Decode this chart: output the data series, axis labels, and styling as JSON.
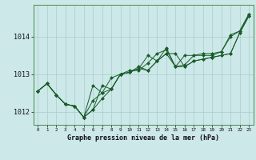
{
  "title": "Graphe pression niveau de la mer (hPa)",
  "bg_color": "#cce8e8",
  "grid_color": "#aacccc",
  "line_color": "#1a5c2a",
  "marker_color": "#1a5c2a",
  "xlim": [
    -0.5,
    23.5
  ],
  "ylim": [
    1011.65,
    1014.85
  ],
  "yticks": [
    1012,
    1013,
    1014
  ],
  "xticks": [
    0,
    1,
    2,
    3,
    4,
    5,
    6,
    7,
    8,
    9,
    10,
    11,
    12,
    13,
    14,
    15,
    16,
    17,
    18,
    19,
    20,
    21,
    22,
    23
  ],
  "series": [
    [
      1012.55,
      1012.75,
      1012.45,
      1012.2,
      1012.15,
      1011.85,
      1012.05,
      1012.35,
      1012.6,
      1013.0,
      1013.05,
      1013.15,
      1013.1,
      1013.35,
      1013.55,
      1013.2,
      1013.2,
      1013.35,
      1013.4,
      1013.45,
      1013.5,
      1013.55,
      1014.1,
      1014.55
    ],
    [
      1012.55,
      1012.75,
      1012.45,
      1012.2,
      1012.15,
      1011.85,
      1012.7,
      1012.5,
      1012.9,
      1013.0,
      1013.1,
      1013.1,
      1013.3,
      1013.55,
      1013.65,
      1013.2,
      1013.25,
      1013.5,
      1013.5,
      1013.5,
      1013.6,
      1014.0,
      1014.15,
      1014.6
    ],
    [
      1012.55,
      1012.75,
      1012.45,
      1012.2,
      1012.15,
      1011.85,
      1012.3,
      1012.5,
      1012.6,
      1013.0,
      1013.05,
      1013.15,
      1013.5,
      1013.35,
      1013.7,
      1013.2,
      1013.5,
      1013.5,
      1013.55,
      1013.55,
      1013.6,
      1014.05,
      1014.15,
      1014.6
    ],
    [
      1012.55,
      1012.75,
      1012.45,
      1012.2,
      1012.15,
      1011.85,
      1012.05,
      1012.7,
      1012.6,
      1013.0,
      1013.05,
      1013.2,
      1013.1,
      1013.35,
      1013.55,
      1013.55,
      1013.2,
      1013.35,
      1013.4,
      1013.45,
      1013.5,
      1013.55,
      1014.1,
      1014.55
    ]
  ],
  "spine_color": "#4a8a4a",
  "tick_label_color": "#111111",
  "xlabel_fontsize": 6.0,
  "ytick_fontsize": 6.0,
  "xtick_fontsize": 4.2
}
